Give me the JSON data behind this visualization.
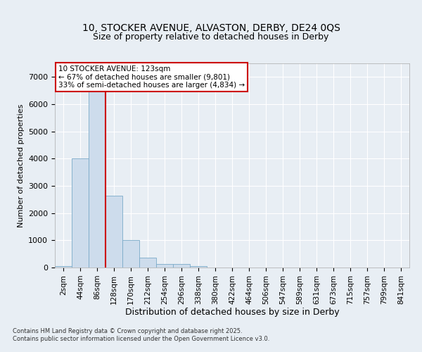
{
  "title_line1": "10, STOCKER AVENUE, ALVASTON, DERBY, DE24 0QS",
  "title_line2": "Size of property relative to detached houses in Derby",
  "xlabel": "Distribution of detached houses by size in Derby",
  "ylabel": "Number of detached properties",
  "bar_labels": [
    "2sqm",
    "44sqm",
    "86sqm",
    "128sqm",
    "170sqm",
    "212sqm",
    "254sqm",
    "296sqm",
    "338sqm",
    "380sqm",
    "422sqm",
    "464sqm",
    "506sqm",
    "547sqm",
    "589sqm",
    "631sqm",
    "673sqm",
    "715sqm",
    "757sqm",
    "799sqm",
    "841sqm"
  ],
  "bar_values": [
    55,
    4000,
    6650,
    2650,
    1000,
    350,
    130,
    130,
    50,
    0,
    0,
    0,
    0,
    0,
    0,
    0,
    0,
    0,
    0,
    0,
    0
  ],
  "bar_color": "#cddcec",
  "bar_edgecolor": "#7aaac8",
  "ylim": [
    0,
    7500
  ],
  "yticks": [
    0,
    1000,
    2000,
    3000,
    4000,
    5000,
    6000,
    7000
  ],
  "vline_x_index": 2.5,
  "vline_color": "#cc0000",
  "annotation_text": "10 STOCKER AVENUE: 123sqm\n← 67% of detached houses are smaller (9,801)\n33% of semi-detached houses are larger (4,834) →",
  "annotation_box_color": "#cc0000",
  "footer_line1": "Contains HM Land Registry data © Crown copyright and database right 2025.",
  "footer_line2": "Contains public sector information licensed under the Open Government Licence v3.0.",
  "bg_color": "#e8eef4",
  "grid_color": "#ffffff",
  "fig_width": 6.0,
  "fig_height": 5.0
}
